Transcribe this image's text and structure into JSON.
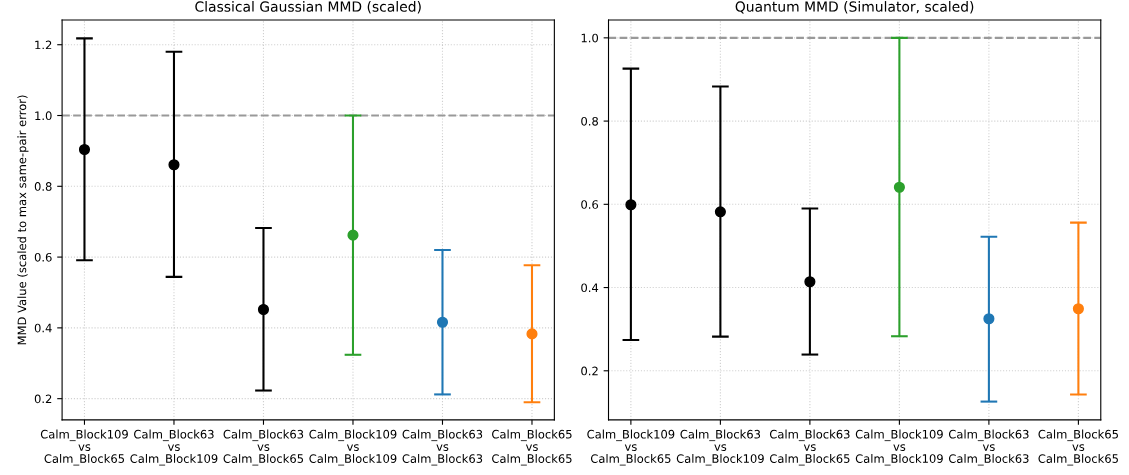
{
  "chart_data": [
    {
      "type": "scatter",
      "title": "Classical Gaussian MMD (scaled)",
      "ylabel": "MMD Value (scaled to max same-pair error)",
      "categories": [
        "Calm_Block109\nvs\nCalm_Block65",
        "Calm_Block63\nvs\nCalm_Block109",
        "Calm_Block63\nvs\nCalm_Block65",
        "Calm_Block109\nvs\nCalm_Block109",
        "Calm_Block63\nvs\nCalm_Block63",
        "Calm_Block65\nvs\nCalm_Block65"
      ],
      "values": [
        0.904,
        0.861,
        0.452,
        0.662,
        0.416,
        0.383
      ],
      "errors": [
        [
          0.591,
          1.218
        ],
        [
          0.544,
          1.18
        ],
        [
          0.223,
          0.682
        ],
        [
          0.324,
          1.0
        ],
        [
          0.212,
          0.62
        ],
        [
          0.19,
          0.577
        ]
      ],
      "colors": [
        "#000000",
        "#000000",
        "#000000",
        "#2ca02c",
        "#1f77b4",
        "#ff7f0e"
      ],
      "ylim": [
        0.14,
        1.27
      ],
      "yticks": [
        0.2,
        0.4,
        0.6,
        0.8,
        {
          "value": 1,
          "label": "1.0"
        },
        1.2
      ],
      "ref_lines": [
        {
          "axis": "y",
          "value": 1.0,
          "color": "#999999",
          "line_style": "dashed"
        }
      ],
      "grid": true,
      "marker": "circle"
    },
    {
      "type": "scatter",
      "title": "Quantum MMD (Simulator, scaled)",
      "categories": [
        "Calm_Block109\nvs\nCalm_Block65",
        "Calm_Block63\nvs\nCalm_Block109",
        "Calm_Block63\nvs\nCalm_Block65",
        "Calm_Block109\nvs\nCalm_Block109",
        "Calm_Block63\nvs\nCalm_Block63",
        "Calm_Block65\nvs\nCalm_Block65"
      ],
      "values": [
        0.599,
        0.582,
        0.414,
        0.641,
        0.325,
        0.349
      ],
      "errors": [
        [
          0.274,
          0.926
        ],
        [
          0.282,
          0.883
        ],
        [
          0.239,
          0.59
        ],
        [
          0.283,
          1.0
        ],
        [
          0.126,
          0.522
        ],
        [
          0.143,
          0.556
        ]
      ],
      "colors": [
        "#000000",
        "#000000",
        "#000000",
        "#2ca02c",
        "#1f77b4",
        "#ff7f0e"
      ],
      "ylim": [
        0.082,
        1.043
      ],
      "yticks": [
        0.2,
        0.4,
        0.6,
        0.8,
        {
          "value": 1,
          "label": "1.0"
        }
      ],
      "ref_lines": [
        {
          "axis": "y",
          "value": 1.0,
          "color": "#999999",
          "line_style": "dashed"
        }
      ],
      "grid": true,
      "marker": "circle"
    }
  ]
}
